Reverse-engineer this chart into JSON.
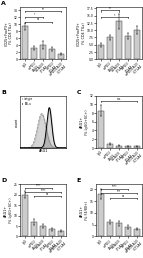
{
  "panel_A_values": [
    9.5,
    3.2,
    4.0,
    2.8,
    1.5
  ],
  "panel_A_errors": [
    1.0,
    0.7,
    1.2,
    0.6,
    0.4
  ],
  "panel_A2_values": [
    5.0,
    7.5,
    13.0,
    8.0,
    10.0
  ],
  "panel_A2_errors": [
    0.7,
    1.0,
    2.5,
    0.9,
    1.3
  ],
  "panel_C_values": [
    8.5,
    0.8,
    0.5,
    0.3,
    0.3
  ],
  "panel_C_errors": [
    1.3,
    0.25,
    0.15,
    0.12,
    0.1
  ],
  "panel_D_values": [
    20.0,
    7.0,
    5.0,
    3.5,
    2.5
  ],
  "panel_D_errors": [
    1.8,
    1.3,
    0.9,
    0.7,
    0.4
  ],
  "panel_E_values": [
    18.0,
    6.0,
    5.5,
    4.0,
    3.0
  ],
  "panel_E_errors": [
    2.2,
    0.9,
    1.1,
    0.8,
    0.5
  ],
  "bar_color": "#cccccc",
  "bar_edge": "#222222",
  "background": "#ffffff",
  "ylabel_A": "CD25+FoxP3+\n(% CD4 TILs)",
  "ylabel_C": "ARG1+\n(% Ly6G+SC+)",
  "ylabel_D": "ARG1+\n(% Ly6G+SC+)",
  "ylabel_E": "ARG1+\n(% F4/80+)",
  "ylim_A": [
    0,
    15
  ],
  "ylim_A2": [
    0,
    18
  ],
  "ylim_C": [
    0,
    12
  ],
  "ylim_D": [
    0,
    25
  ],
  "ylim_E": [
    0,
    22
  ],
  "xlabels_short": [
    "IgG",
    "a-PD1/\nLAG3",
    "a-LAG3/\nCTLA4",
    "a-PD1/\nCTLA4",
    "a-PD1/LAG3\n/CTLA4"
  ],
  "sig_A": [
    [
      0,
      4,
      13.8,
      "**"
    ],
    [
      0,
      2,
      12.2,
      "*"
    ],
    [
      0,
      3,
      10.8,
      "ns"
    ]
  ],
  "sig_A2": [
    [
      0,
      2,
      16.8,
      "**"
    ],
    [
      0,
      3,
      14.5,
      "*"
    ]
  ],
  "sig_C": [
    [
      0,
      4,
      10.8,
      "n.s."
    ]
  ],
  "sig_D": [
    [
      0,
      3,
      23.2,
      "****"
    ],
    [
      0,
      4,
      21.2,
      "****"
    ],
    [
      1,
      4,
      19.2,
      "ns"
    ]
  ],
  "sig_E": [
    [
      0,
      3,
      20.2,
      "****"
    ],
    [
      0,
      4,
      18.2,
      "***"
    ],
    [
      1,
      4,
      16.2,
      "ns"
    ]
  ]
}
